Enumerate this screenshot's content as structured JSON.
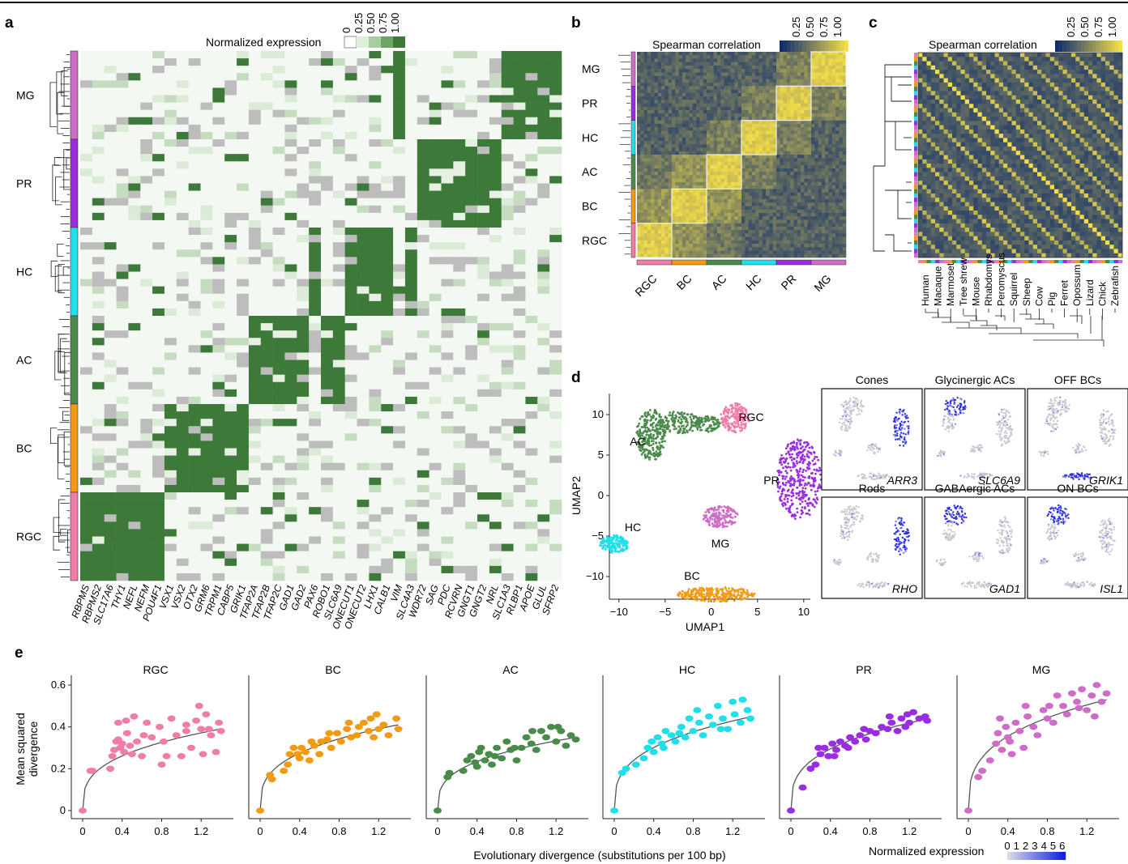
{
  "panels": {
    "a": {
      "label": "a",
      "legend_title": "Normalized expression",
      "legend_ticks": [
        "0",
        "0.25",
        "0.50",
        "0.75",
        "1.00"
      ],
      "rows": [
        "MG",
        "PR",
        "HC",
        "AC",
        "BC",
        "RGC"
      ],
      "genes": [
        "RBPMS",
        "RBPMS2",
        "SLC17A6",
        "THY1",
        "NEFL",
        "NEFM",
        "POU4F1",
        "VSX1",
        "VSX2",
        "OTX2",
        "GRM6",
        "TRPM1",
        "CABP5",
        "GRIK1",
        "TFAP2A",
        "TFAP2B",
        "TFAP2C",
        "GAD1",
        "GAD2",
        "PAX6",
        "ROBO1",
        "SLC6A9",
        "ONECUT1",
        "ONECUT2",
        "LHX1",
        "CALB1",
        "VIM",
        "SLC4A3",
        "WDR72",
        "SAG",
        "PDC",
        "RCVRN",
        "GNGT1",
        "GNGT2",
        "NRL",
        "SLC1A3",
        "RLBP1",
        "APOE",
        "GLUL",
        "SFRP2"
      ]
    },
    "b": {
      "label": "b",
      "legend_title": "Spearman correlation",
      "legend_ticks": [
        "0.25",
        "0.50",
        "0.75",
        "1.00"
      ],
      "rows": [
        "MG",
        "PR",
        "HC",
        "AC",
        "BC",
        "RGC"
      ],
      "cols": [
        "RGC",
        "BC",
        "AC",
        "HC",
        "PR",
        "MG"
      ]
    },
    "c": {
      "label": "c",
      "legend_title": "Spearman correlation",
      "legend_ticks": [
        "0.25",
        "0.50",
        "0.75",
        "1.00"
      ],
      "species": [
        "Human",
        "Macaque",
        "Marmoset",
        "Tree shrew",
        "Mouse",
        "Rhabdomys",
        "Peromyscus",
        "Squirrel",
        "Sheep",
        "Cow",
        "Pig",
        "Ferret",
        "Opossum",
        "Lizard",
        "Chick",
        "Zebrafish"
      ]
    },
    "d": {
      "label": "d",
      "xlabel": "UMAP1",
      "ylabel": "UMAP2",
      "xticks": [
        "−10",
        "−5",
        "0",
        "5",
        "10"
      ],
      "yticks": [
        "10",
        "5",
        "0",
        "−5",
        "−10"
      ],
      "clusters": [
        "RGC",
        "AC",
        "PR",
        "HC",
        "MG",
        "BC"
      ],
      "subpanels": [
        {
          "title": "Cones",
          "gene": "ARR3"
        },
        {
          "title": "Glycinergic ACs",
          "gene": "SLC6A9"
        },
        {
          "title": "OFF BCs",
          "gene": "GRIK1"
        },
        {
          "title": "Rods",
          "gene": "RHO"
        },
        {
          "title": "GABAergic ACs",
          "gene": "GAD1"
        },
        {
          "title": "ON BCs",
          "gene": "ISL1"
        }
      ],
      "legend_title": "Normalized expression",
      "legend_ticks": [
        "0",
        "1",
        "2",
        "3",
        "4",
        "5",
        "6"
      ]
    },
    "e": {
      "label": "e",
      "ylabel_line1": "Mean squared",
      "ylabel_line2": "divergence",
      "xlabel": "Evolutionary divergence (substitutions per 100 bp)",
      "yticks": [
        "0",
        "0.2",
        "0.4",
        "0.6"
      ],
      "xticks": [
        "0",
        "0.4",
        "0.8",
        "1.2"
      ]
    }
  },
  "colors": {
    "RGC": "#f07ca8",
    "BC": "#f29b12",
    "AC": "#4a8a4a",
    "HC": "#1fe0e8",
    "PR": "#9b2de0",
    "MG": "#cf6cc7",
    "heat_green": "#3d7a3a",
    "heat_gray": "#bdbdbd",
    "corr_low": "#0f2c6e",
    "corr_high": "#f3dd4a"
  },
  "chart_data": [
    {
      "type": "scatter",
      "title": "RGC",
      "xlabel": "Evolutionary divergence (substitutions per 100 bp)",
      "ylabel": "Mean squared divergence",
      "xlim": [
        0,
        1.4
      ],
      "ylim": [
        0,
        0.6
      ],
      "fit_asymptote": 0.39,
      "points": [
        [
          0,
          0
        ],
        [
          0.08,
          0.19
        ],
        [
          0.1,
          0.19
        ],
        [
          0.28,
          0.2
        ],
        [
          0.3,
          0.26
        ],
        [
          0.32,
          0.29
        ],
        [
          0.34,
          0.33
        ],
        [
          0.36,
          0.34
        ],
        [
          0.38,
          0.3
        ],
        [
          0.4,
          0.32
        ],
        [
          0.42,
          0.28
        ],
        [
          0.45,
          0.37
        ],
        [
          0.48,
          0.31
        ],
        [
          0.5,
          0.27
        ],
        [
          0.55,
          0.33
        ],
        [
          0.6,
          0.26
        ],
        [
          0.62,
          0.36
        ],
        [
          0.7,
          0.35
        ],
        [
          0.78,
          0.4
        ],
        [
          0.8,
          0.22
        ],
        [
          0.82,
          0.33
        ],
        [
          0.85,
          0.26
        ],
        [
          0.95,
          0.36
        ],
        [
          1.0,
          0.26
        ],
        [
          1.05,
          0.41
        ],
        [
          1.1,
          0.3
        ],
        [
          1.15,
          0.43
        ],
        [
          1.18,
          0.5
        ],
        [
          1.2,
          0.39
        ],
        [
          1.22,
          0.27
        ],
        [
          1.25,
          0.46
        ],
        [
          1.3,
          0.36
        ],
        [
          1.35,
          0.28
        ],
        [
          1.38,
          0.42
        ],
        [
          1.4,
          0.38
        ],
        [
          0.44,
          0.43
        ],
        [
          0.36,
          0.42
        ],
        [
          0.52,
          0.45
        ],
        [
          0.65,
          0.42
        ],
        [
          0.9,
          0.44
        ],
        [
          1.05,
          0.38
        ],
        [
          1.28,
          0.39
        ]
      ]
    },
    {
      "type": "scatter",
      "title": "BC",
      "xlim": [
        0,
        1.4
      ],
      "ylim": [
        0,
        0.6
      ],
      "fit_asymptote": 0.41,
      "points": [
        [
          0,
          0
        ],
        [
          0.1,
          0.17
        ],
        [
          0.12,
          0.15
        ],
        [
          0.28,
          0.22
        ],
        [
          0.3,
          0.27
        ],
        [
          0.34,
          0.3
        ],
        [
          0.38,
          0.27
        ],
        [
          0.4,
          0.25
        ],
        [
          0.42,
          0.3
        ],
        [
          0.46,
          0.28
        ],
        [
          0.5,
          0.24
        ],
        [
          0.55,
          0.31
        ],
        [
          0.6,
          0.27
        ],
        [
          0.62,
          0.33
        ],
        [
          0.68,
          0.34
        ],
        [
          0.72,
          0.3
        ],
        [
          0.78,
          0.37
        ],
        [
          0.82,
          0.33
        ],
        [
          0.88,
          0.39
        ],
        [
          0.92,
          0.35
        ],
        [
          0.98,
          0.36
        ],
        [
          1.05,
          0.42
        ],
        [
          1.1,
          0.38
        ],
        [
          1.12,
          0.44
        ],
        [
          1.18,
          0.46
        ],
        [
          1.2,
          0.39
        ],
        [
          1.25,
          0.41
        ],
        [
          1.3,
          0.36
        ],
        [
          1.38,
          0.44
        ],
        [
          1.4,
          0.39
        ],
        [
          0.24,
          0.19
        ],
        [
          0.52,
          0.33
        ],
        [
          0.7,
          0.37
        ],
        [
          0.9,
          0.42
        ],
        [
          1.0,
          0.4
        ],
        [
          1.15,
          0.35
        ]
      ]
    },
    {
      "type": "scatter",
      "title": "AC",
      "xlim": [
        0,
        1.4
      ],
      "ylim": [
        0,
        0.6
      ],
      "fit_asymptote": 0.35,
      "points": [
        [
          0,
          0
        ],
        [
          0.1,
          0.16
        ],
        [
          0.12,
          0.18
        ],
        [
          0.26,
          0.19
        ],
        [
          0.3,
          0.24
        ],
        [
          0.34,
          0.26
        ],
        [
          0.38,
          0.23
        ],
        [
          0.4,
          0.21
        ],
        [
          0.44,
          0.3
        ],
        [
          0.48,
          0.24
        ],
        [
          0.52,
          0.27
        ],
        [
          0.55,
          0.22
        ],
        [
          0.6,
          0.3
        ],
        [
          0.65,
          0.25
        ],
        [
          0.7,
          0.33
        ],
        [
          0.78,
          0.3
        ],
        [
          0.8,
          0.24
        ],
        [
          0.85,
          0.3
        ],
        [
          0.9,
          0.35
        ],
        [
          0.95,
          0.32
        ],
        [
          1.0,
          0.29
        ],
        [
          1.05,
          0.38
        ],
        [
          1.1,
          0.35
        ],
        [
          1.15,
          0.4
        ],
        [
          1.2,
          0.33
        ],
        [
          1.25,
          0.38
        ],
        [
          1.3,
          0.31
        ],
        [
          1.35,
          0.36
        ],
        [
          1.4,
          0.34
        ],
        [
          0.42,
          0.28
        ],
        [
          0.58,
          0.26
        ],
        [
          0.74,
          0.29
        ],
        [
          0.96,
          0.38
        ],
        [
          1.22,
          0.4
        ]
      ]
    },
    {
      "type": "scatter",
      "title": "HC",
      "xlim": [
        0,
        1.4
      ],
      "ylim": [
        0,
        0.6
      ],
      "fit_asymptote": 0.45,
      "points": [
        [
          0,
          0
        ],
        [
          0.08,
          0.18
        ],
        [
          0.12,
          0.2
        ],
        [
          0.3,
          0.25
        ],
        [
          0.34,
          0.3
        ],
        [
          0.38,
          0.33
        ],
        [
          0.4,
          0.28
        ],
        [
          0.44,
          0.35
        ],
        [
          0.48,
          0.32
        ],
        [
          0.52,
          0.38
        ],
        [
          0.58,
          0.36
        ],
        [
          0.62,
          0.33
        ],
        [
          0.68,
          0.4
        ],
        [
          0.72,
          0.35
        ],
        [
          0.76,
          0.44
        ],
        [
          0.8,
          0.38
        ],
        [
          0.86,
          0.42
        ],
        [
          0.9,
          0.36
        ],
        [
          0.96,
          0.45
        ],
        [
          1.0,
          0.41
        ],
        [
          1.05,
          0.5
        ],
        [
          1.1,
          0.44
        ],
        [
          1.15,
          0.39
        ],
        [
          1.2,
          0.52
        ],
        [
          1.22,
          0.46
        ],
        [
          1.28,
          0.42
        ],
        [
          1.35,
          0.48
        ],
        [
          1.38,
          0.44
        ],
        [
          0.22,
          0.22
        ],
        [
          0.5,
          0.3
        ],
        [
          0.66,
          0.37
        ],
        [
          0.84,
          0.48
        ],
        [
          1.08,
          0.39
        ],
        [
          1.3,
          0.53
        ]
      ]
    },
    {
      "type": "scatter",
      "title": "PR",
      "xlim": [
        0,
        1.4
      ],
      "ylim": [
        0,
        0.6
      ],
      "fit_asymptote": 0.44,
      "points": [
        [
          0,
          0
        ],
        [
          0.12,
          0.11
        ],
        [
          0.2,
          0.2
        ],
        [
          0.25,
          0.22
        ],
        [
          0.3,
          0.27
        ],
        [
          0.34,
          0.3
        ],
        [
          0.38,
          0.26
        ],
        [
          0.42,
          0.32
        ],
        [
          0.46,
          0.29
        ],
        [
          0.5,
          0.33
        ],
        [
          0.55,
          0.31
        ],
        [
          0.6,
          0.35
        ],
        [
          0.65,
          0.33
        ],
        [
          0.7,
          0.36
        ],
        [
          0.76,
          0.34
        ],
        [
          0.8,
          0.38
        ],
        [
          0.86,
          0.37
        ],
        [
          0.92,
          0.4
        ],
        [
          0.98,
          0.39
        ],
        [
          1.02,
          0.42
        ],
        [
          1.08,
          0.38
        ],
        [
          1.12,
          0.44
        ],
        [
          1.18,
          0.46
        ],
        [
          1.2,
          0.42
        ],
        [
          1.24,
          0.47
        ],
        [
          1.3,
          0.44
        ],
        [
          1.36,
          0.45
        ],
        [
          1.38,
          0.43
        ],
        [
          0.28,
          0.3
        ],
        [
          0.44,
          0.26
        ],
        [
          0.58,
          0.3
        ],
        [
          0.74,
          0.39
        ],
        [
          1.0,
          0.45
        ],
        [
          1.16,
          0.4
        ]
      ]
    },
    {
      "type": "scatter",
      "title": "MG",
      "xlim": [
        0,
        1.4
      ],
      "ylim": [
        0,
        0.6
      ],
      "fit_asymptote": 0.53,
      "points": [
        [
          0,
          0
        ],
        [
          0.1,
          0.16
        ],
        [
          0.14,
          0.19
        ],
        [
          0.22,
          0.24
        ],
        [
          0.28,
          0.32
        ],
        [
          0.3,
          0.37
        ],
        [
          0.34,
          0.29
        ],
        [
          0.38,
          0.4
        ],
        [
          0.4,
          0.35
        ],
        [
          0.44,
          0.27
        ],
        [
          0.48,
          0.42
        ],
        [
          0.52,
          0.38
        ],
        [
          0.56,
          0.3
        ],
        [
          0.6,
          0.45
        ],
        [
          0.66,
          0.4
        ],
        [
          0.7,
          0.36
        ],
        [
          0.76,
          0.48
        ],
        [
          0.82,
          0.5
        ],
        [
          0.86,
          0.42
        ],
        [
          0.9,
          0.55
        ],
        [
          0.96,
          0.5
        ],
        [
          1.0,
          0.46
        ],
        [
          1.05,
          0.56
        ],
        [
          1.1,
          0.52
        ],
        [
          1.15,
          0.58
        ],
        [
          1.2,
          0.48
        ],
        [
          1.25,
          0.55
        ],
        [
          1.3,
          0.6
        ],
        [
          1.35,
          0.52
        ],
        [
          1.4,
          0.56
        ],
        [
          0.32,
          0.44
        ],
        [
          0.42,
          0.33
        ],
        [
          0.58,
          0.5
        ],
        [
          0.8,
          0.44
        ],
        [
          1.12,
          0.49
        ],
        [
          1.28,
          0.45
        ]
      ]
    }
  ]
}
